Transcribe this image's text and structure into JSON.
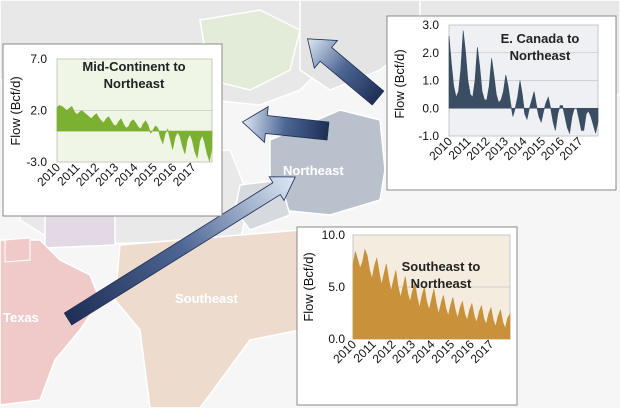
{
  "map": {
    "labels": {
      "northeast": "Northeast",
      "southeast": "Southeast",
      "texas": "Texas"
    }
  },
  "chart_data": [
    {
      "type": "area",
      "title_lines": [
        "Mid-Continent to",
        "Northeast"
      ],
      "xlabel": "",
      "ylabel": "Flow (Bcf/d)",
      "ylim": [
        -3,
        7
      ],
      "yticks": [
        "7.0",
        "2.0",
        "-3.0"
      ],
      "xticks": [
        "2010",
        "2011",
        "2012",
        "2013",
        "2014",
        "2015",
        "2016",
        "2017"
      ],
      "grid": true,
      "color": "#7cb030",
      "background": "#f0f6e6",
      "x_start": 2010,
      "x_end": 2018,
      "series": [
        {
          "values": [
            2.3,
            2.5,
            2.4,
            2.2,
            2.0,
            2.2,
            2.4,
            1.9,
            1.6,
            1.8,
            2.0,
            1.8,
            1.6,
            1.4,
            1.2,
            1.5,
            1.7,
            1.3,
            1.0,
            0.8,
            1.2,
            1.4,
            1.0,
            0.6,
            0.5,
            0.9,
            1.2,
            0.7,
            0.3,
            0.4,
            0.9,
            1.1,
            0.8,
            0.4,
            0.2,
            0.7,
            1.0,
            0.6,
            -0.2,
            0.1,
            0.5,
            0.3,
            -0.6,
            -1.2,
            -0.2,
            0.2,
            -0.8,
            -1.8,
            -0.6,
            -0.1,
            -0.5,
            -1.5,
            -2.2,
            -0.8,
            -0.3,
            -0.9,
            -2.0,
            -2.6,
            -1.0,
            -0.4,
            -1.1,
            -2.2,
            -2.9,
            -1.6
          ]
        }
      ]
    },
    {
      "type": "area",
      "title_lines": [
        "E. Canada to",
        "Northeast"
      ],
      "xlabel": "",
      "ylabel": "Flow (Bcf/d)",
      "ylim": [
        -1,
        3
      ],
      "yticks": [
        "3.0",
        "2.0",
        "1.0",
        "0.0",
        "-1.0"
      ],
      "xticks": [
        "2010",
        "2011",
        "2012",
        "2013",
        "2014",
        "2015",
        "2016",
        "2017"
      ],
      "grid": true,
      "color": "#3a4d63",
      "background": "#eef0f3",
      "x_start": 2010,
      "x_end": 2018,
      "series": [
        {
          "values": [
            2.6,
            1.6,
            0.8,
            0.4,
            0.6,
            1.4,
            2.8,
            2.0,
            1.0,
            0.5,
            0.4,
            1.0,
            2.2,
            1.5,
            0.6,
            0.3,
            0.3,
            0.8,
            1.8,
            1.2,
            0.5,
            0.2,
            0.3,
            0.6,
            1.2,
            0.8,
            0.2,
            -0.3,
            0.0,
            0.4,
            1.0,
            0.5,
            -0.2,
            -0.4,
            0.0,
            0.3,
            0.6,
            0.1,
            -0.3,
            -0.5,
            -0.1,
            0.2,
            0.4,
            0.0,
            -0.5,
            -0.8,
            -0.2,
            0.1,
            0.1,
            -0.3,
            -0.7,
            -0.9,
            -0.3,
            0.0,
            0.0,
            -0.4,
            -0.8,
            -0.8,
            -0.2,
            -0.1,
            -0.3,
            -0.6,
            -0.9,
            -0.5
          ]
        }
      ]
    },
    {
      "type": "area",
      "title_lines": [
        "Southeast to",
        "Northeast"
      ],
      "xlabel": "",
      "ylabel": "Flow (Bcf/d)",
      "ylim": [
        0,
        10
      ],
      "yticks": [
        "10.0",
        "5.0",
        "0.0"
      ],
      "xticks": [
        "2010",
        "2011",
        "2012",
        "2013",
        "2014",
        "2015",
        "2016",
        "2017"
      ],
      "grid": true,
      "color": "#c8913a",
      "background": "#f5ece0",
      "x_start": 2010,
      "x_end": 2018,
      "series": [
        {
          "values": [
            7.2,
            8.4,
            7.6,
            6.8,
            7.4,
            8.6,
            8.0,
            6.6,
            5.8,
            7.0,
            7.8,
            6.4,
            5.2,
            6.2,
            7.2,
            5.8,
            4.6,
            5.6,
            6.6,
            5.0,
            4.0,
            5.0,
            6.0,
            4.4,
            3.6,
            4.6,
            5.4,
            4.0,
            3.0,
            4.2,
            5.0,
            3.6,
            2.8,
            3.8,
            4.8,
            3.4,
            2.4,
            3.4,
            4.2,
            3.0,
            2.2,
            3.2,
            4.0,
            2.8,
            2.0,
            3.0,
            3.6,
            2.4,
            1.8,
            2.8,
            3.4,
            2.2,
            1.6,
            2.6,
            3.2,
            2.0,
            1.4,
            2.4,
            3.0,
            1.8,
            1.2,
            2.2,
            2.8,
            1.6,
            1.0,
            2.0,
            2.4
          ]
        }
      ]
    }
  ]
}
